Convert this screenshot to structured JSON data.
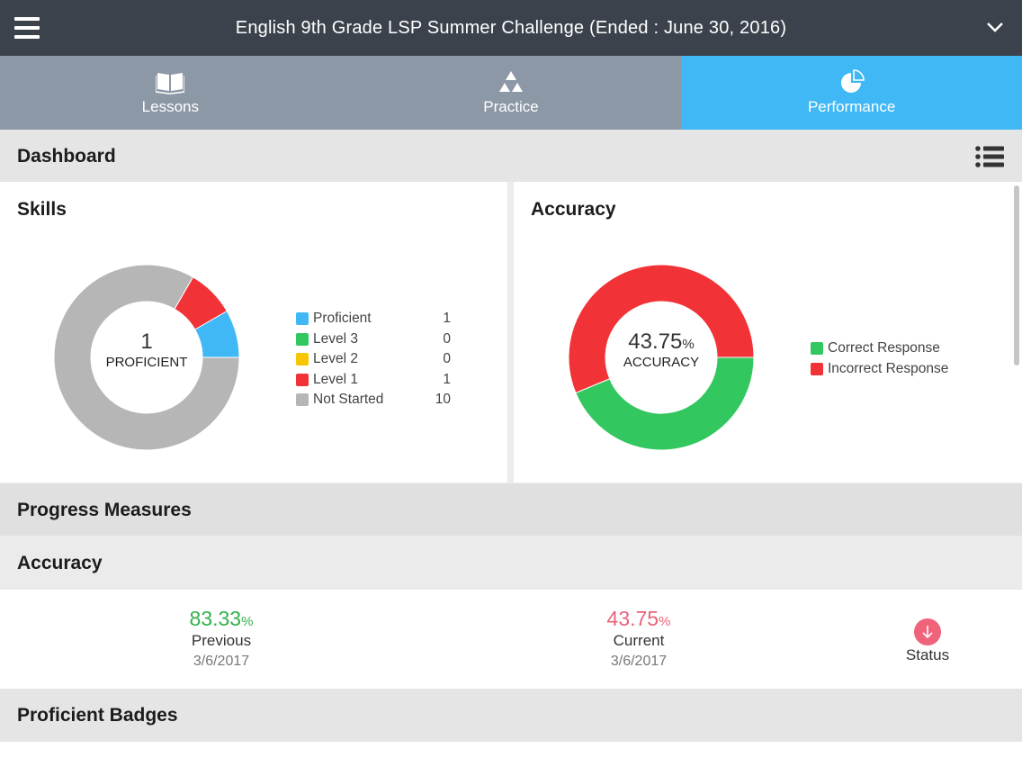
{
  "header": {
    "title": "English 9th Grade LSP Summer Challenge (Ended : June 30, 2016)"
  },
  "tabs": [
    {
      "label": "Lessons",
      "icon": "book-icon"
    },
    {
      "label": "Practice",
      "icon": "triangles-icon"
    },
    {
      "label": "Performance",
      "icon": "pie-chart-icon"
    }
  ],
  "dashboard": {
    "title": "Dashboard"
  },
  "skills": {
    "title": "Skills",
    "center_value": "1",
    "center_label": "PROFICIENT",
    "legend": [
      {
        "label": "Proficient",
        "value": "1",
        "color": "#40b8f5"
      },
      {
        "label": "Level 3",
        "value": "0",
        "color": "#33c760"
      },
      {
        "label": "Level 2",
        "value": "0",
        "color": "#f7c600"
      },
      {
        "label": "Level 1",
        "value": "1",
        "color": "#f13237"
      },
      {
        "label": "Not Started",
        "value": "10",
        "color": "#b6b6b6"
      }
    ]
  },
  "accuracy_card": {
    "title": "Accuracy",
    "center_value": "43.75",
    "center_unit": "%",
    "center_label": "ACCURACY",
    "legend": [
      {
        "label": "Correct Response",
        "color": "#33c760"
      },
      {
        "label": "Incorrect Response",
        "color": "#f13237"
      }
    ]
  },
  "chart_data": [
    {
      "type": "pie",
      "title": "Skills",
      "categories": [
        "Proficient",
        "Level 3",
        "Level 2",
        "Level 1",
        "Not Started"
      ],
      "values": [
        1,
        0,
        0,
        1,
        10
      ],
      "colors": [
        "#40b8f5",
        "#33c760",
        "#f7c600",
        "#f13237",
        "#b6b6b6"
      ]
    },
    {
      "type": "pie",
      "title": "Accuracy",
      "categories": [
        "Correct Response",
        "Incorrect Response"
      ],
      "values": [
        43.75,
        56.25
      ],
      "colors": [
        "#33c760",
        "#f13237"
      ]
    }
  ],
  "progress": {
    "title": "Progress Measures"
  },
  "accuracy_measure": {
    "title": "Accuracy",
    "previous": {
      "value": "83.33",
      "unit": "%",
      "label": "Previous",
      "date": "3/6/2017",
      "color": "#33b14b"
    },
    "current": {
      "value": "43.75",
      "unit": "%",
      "label": "Current",
      "date": "3/6/2017",
      "color": "#e8637a"
    },
    "status": {
      "label": "Status",
      "icon": "arrow-down-icon"
    }
  },
  "badges": {
    "title": "Proficient Badges"
  }
}
